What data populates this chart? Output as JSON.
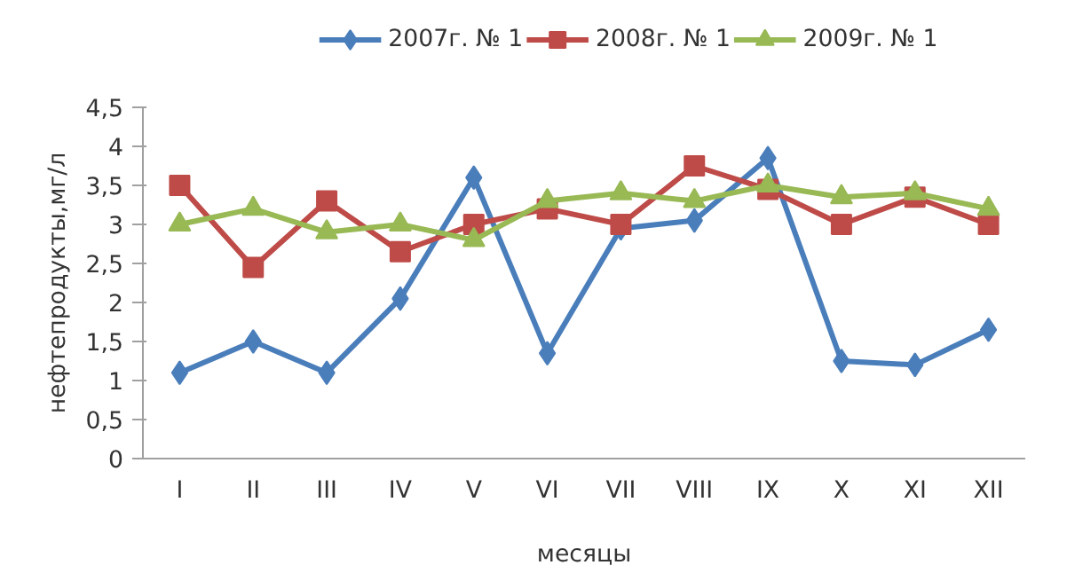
{
  "chart_data": {
    "type": "line",
    "xlabel": "месяцы",
    "ylabel": "нефтепродукты,мг/л",
    "categories": [
      "I",
      "II",
      "III",
      "IV",
      "V",
      "VI",
      "VII",
      "VIII",
      "IX",
      "X",
      "XI",
      "XII"
    ],
    "series": [
      {
        "name": "2007г. № 1",
        "color": "#4a7ebb",
        "marker": "diamond",
        "values": [
          1.1,
          1.5,
          1.1,
          2.05,
          3.6,
          1.35,
          2.95,
          3.05,
          3.85,
          1.25,
          1.2,
          1.65
        ]
      },
      {
        "name": "2008г. № 1",
        "color": "#be4b48",
        "marker": "square",
        "values": [
          3.5,
          2.45,
          3.3,
          2.65,
          3.0,
          3.2,
          3.0,
          3.75,
          3.45,
          3.0,
          3.35,
          3.0
        ]
      },
      {
        "name": "2009г. № 1",
        "color": "#98b954",
        "marker": "triangle",
        "values": [
          3.0,
          3.2,
          2.9,
          3.0,
          2.8,
          3.3,
          3.4,
          3.3,
          3.5,
          3.35,
          3.4,
          3.2
        ]
      }
    ],
    "ylim": [
      0,
      4.5
    ],
    "yticks": [
      {
        "value": 0,
        "label": "0"
      },
      {
        "value": 0.5,
        "label": "0,5"
      },
      {
        "value": 1,
        "label": "1"
      },
      {
        "value": 1.5,
        "label": "1,5"
      },
      {
        "value": 2,
        "label": "2"
      },
      {
        "value": 2.5,
        "label": "2,5"
      },
      {
        "value": 3,
        "label": "3"
      },
      {
        "value": 3.5,
        "label": "3,5"
      },
      {
        "value": 4,
        "label": "4"
      },
      {
        "value": 4.5,
        "label": "4,5"
      }
    ],
    "grid": false,
    "legend": "top",
    "line_style": "solid"
  }
}
